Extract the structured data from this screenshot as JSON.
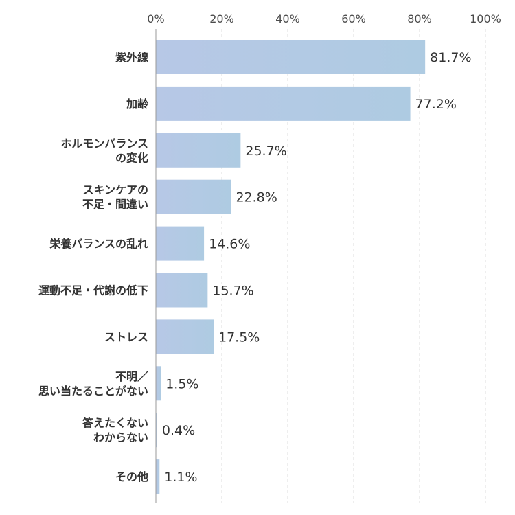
{
  "chart_data": {
    "type": "bar",
    "orientation": "horizontal",
    "categories": [
      [
        "紫外線"
      ],
      [
        "加齢"
      ],
      [
        "ホルモンバランス",
        "の変化"
      ],
      [
        "スキンケアの",
        "不足・間違い"
      ],
      [
        "栄養バランスの乱れ"
      ],
      [
        "運動不足・代謝の低下"
      ],
      [
        "ストレス"
      ],
      [
        "不明／",
        "思い当たることがない"
      ],
      [
        "答えたくない",
        "わからない"
      ],
      [
        "その他"
      ]
    ],
    "values": [
      81.7,
      77.2,
      25.7,
      22.8,
      14.6,
      15.7,
      17.5,
      1.5,
      0.4,
      1.1
    ],
    "value_labels": [
      "81.7%",
      "77.2%",
      "25.7%",
      "22.8%",
      "14.6%",
      "15.7%",
      "17.5%",
      "1.5%",
      "0.4%",
      "1.1%"
    ],
    "xticks": [
      "0%",
      "20%",
      "40%",
      "60%",
      "80%",
      "100%"
    ],
    "xlim": [
      0,
      100
    ],
    "axis_position": "top",
    "grid": "vertical dashed",
    "bar_color": "#b3cce6",
    "title": "",
    "xlabel": "",
    "ylabel": ""
  }
}
